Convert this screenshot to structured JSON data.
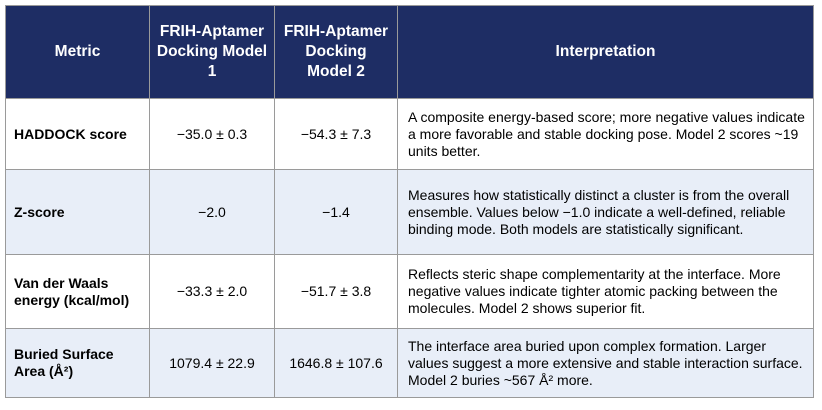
{
  "header": {
    "metric": "Metric",
    "model1": "FRIH-Aptamer Docking Model 1",
    "model2": "FRIH-Aptamer Docking Model 2",
    "interpretation": "Interpretation"
  },
  "rows": [
    {
      "metric": "HADDOCK score",
      "model1": "−35.0 ± 0.3",
      "model2": "−54.3 ± 7.3",
      "interpretation": "A composite energy-based score; more negative values indicate a more favorable and stable docking pose. Model 2 scores ~19 units better."
    },
    {
      "metric": "Z-score",
      "model1": "−2.0",
      "model2": "−1.4",
      "interpretation": "Measures how statistically distinct a cluster is from the overall ensemble. Values below −1.0 indicate a well-defined, reliable binding mode. Both models are statistically significant."
    },
    {
      "metric": "Van der Waals energy (kcal/mol)",
      "model1": "−33.3 ± 2.0",
      "model2": "−51.7 ± 3.8",
      "interpretation": "Reflects steric shape complementarity at the interface. More negative values indicate tighter atomic packing between the molecules. Model 2 shows superior fit."
    },
    {
      "metric": "Buried Surface Area (Å²)",
      "model1": "1079.4 ± 22.9",
      "model2": "1646.8 ± 107.6",
      "interpretation": "The interface area buried upon complex formation. Larger values suggest a more extensive and stable interaction surface. Model 2 buries ~567 Å² more."
    }
  ],
  "colors": {
    "header_bg": "#1e2d64",
    "header_text": "#ffffff",
    "alt_row_bg": "#e8eef8",
    "border": "#9a9a9a"
  }
}
